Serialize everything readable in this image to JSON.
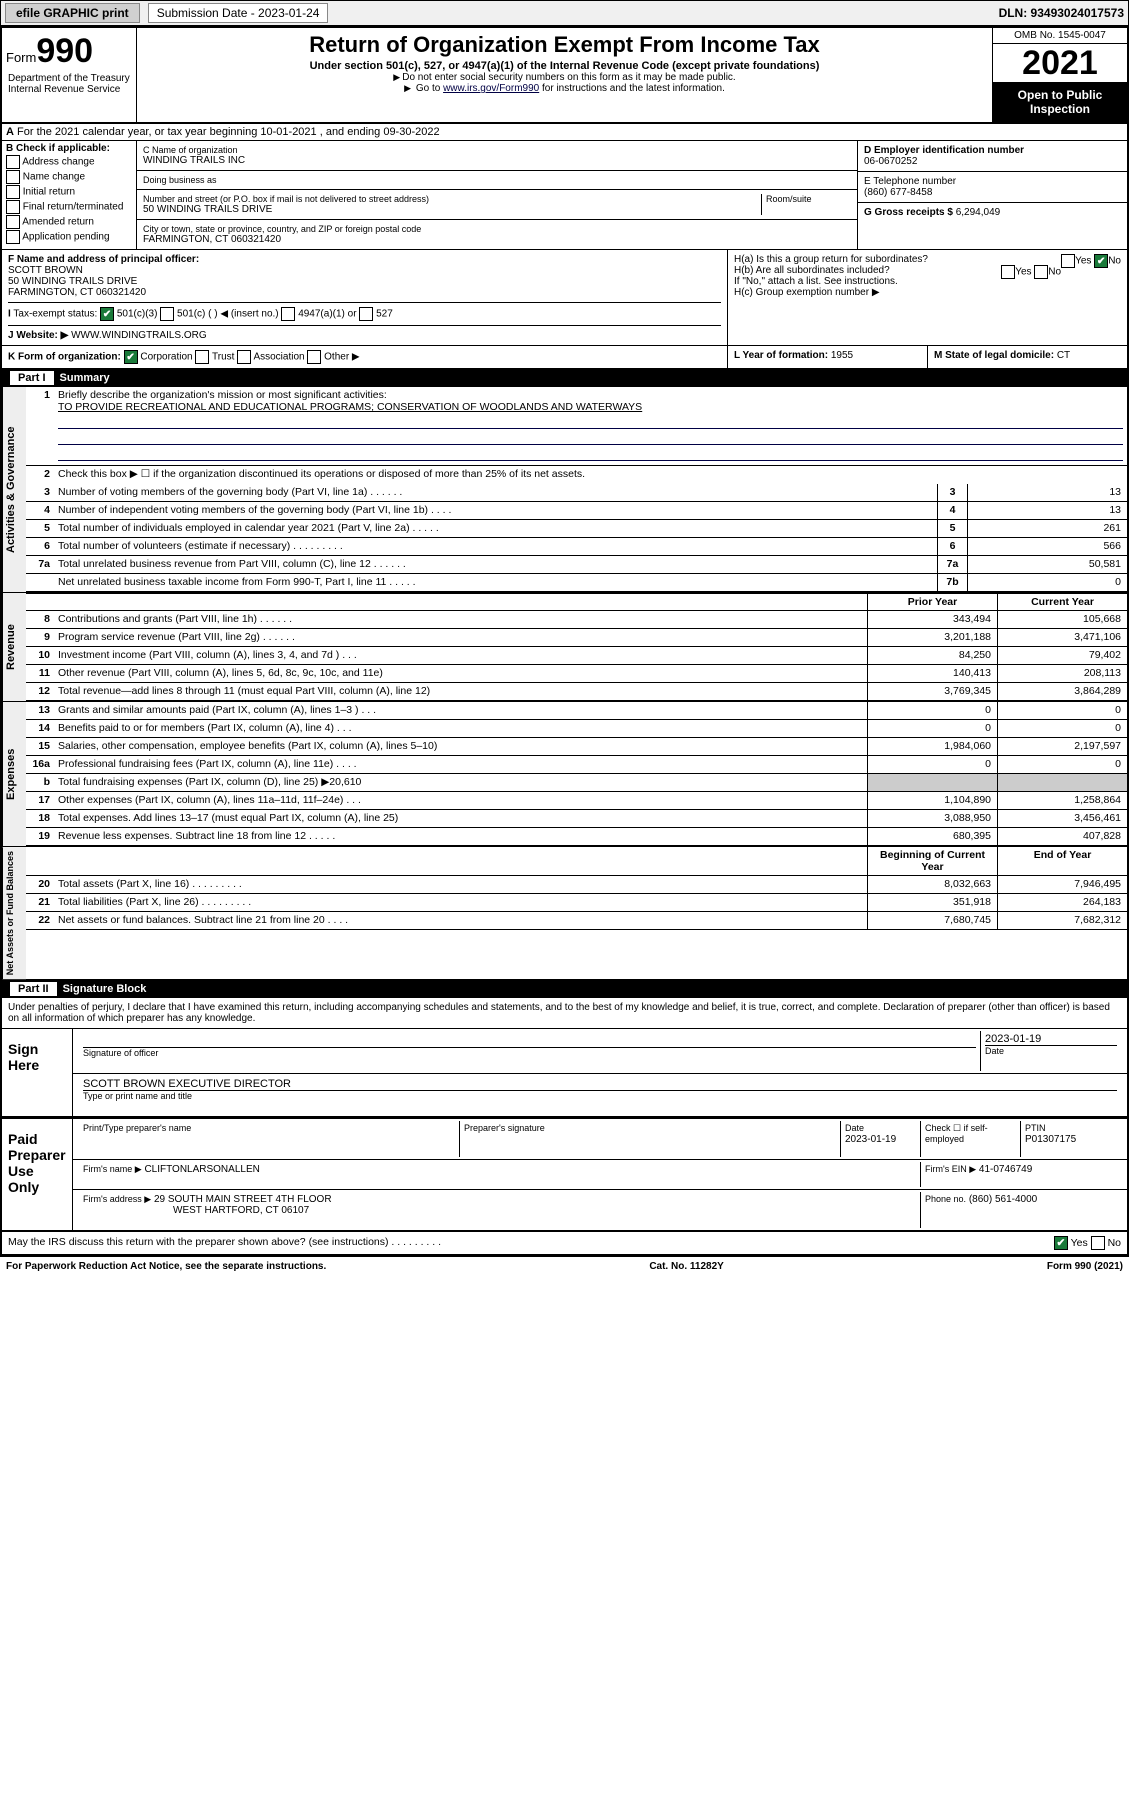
{
  "header": {
    "efile": "efile GRAPHIC print",
    "subdate_label": "Submission Date - 2023-01-24",
    "dln": "DLN: 93493024017573"
  },
  "top": {
    "form_prefix": "Form",
    "form_num": "990",
    "title": "Return of Organization Exempt From Income Tax",
    "subtitle": "Under section 501(c), 527, or 4947(a)(1) of the Internal Revenue Code (except private foundations)",
    "note1": "Do not enter social security numbers on this form as it may be made public.",
    "note2_pre": "Go to ",
    "note2_link": "www.irs.gov/Form990",
    "note2_post": " for instructions and the latest information.",
    "omb": "OMB No. 1545-0047",
    "year": "2021",
    "open_pub": "Open to Public Inspection",
    "dept": "Department of the Treasury\nInternal Revenue Service"
  },
  "lineA": "For the 2021 calendar year, or tax year beginning 10-01-2021   , and ending 09-30-2022",
  "colB": {
    "hdr": "B Check if applicable:",
    "items": [
      "Address change",
      "Name change",
      "Initial return",
      "Final return/terminated",
      "Amended return",
      "Application pending"
    ]
  },
  "colC": {
    "name_lbl": "C Name of organization",
    "name": "WINDING TRAILS INC",
    "dba_lbl": "Doing business as",
    "dba": "",
    "addr_lbl": "Number and street (or P.O. box if mail is not delivered to street address)",
    "room_lbl": "Room/suite",
    "addr": "50 WINDING TRAILS DRIVE",
    "city_lbl": "City or town, state or province, country, and ZIP or foreign postal code",
    "city": "FARMINGTON, CT  060321420"
  },
  "colDE": {
    "d_lbl": "D Employer identification number",
    "d_val": "06-0670252",
    "e_lbl": "E Telephone number",
    "e_val": "(860) 677-8458",
    "g_lbl": "G Gross receipts $",
    "g_val": "6,294,049"
  },
  "rowF": {
    "f_lbl": "F Name and address of principal officer:",
    "f_name": "SCOTT BROWN",
    "f_addr1": "50 WINDING TRAILS DRIVE",
    "f_addr2": "FARMINGTON, CT  060321420",
    "ha": "H(a)  Is this a group return for subordinates?",
    "hb": "H(b)  Are all subordinates included?",
    "hb_note": "If \"No,\" attach a list. See instructions.",
    "hc": "H(c)  Group exemption number ▶",
    "yes": "Yes",
    "no": "No"
  },
  "rowI": {
    "lbl": "Tax-exempt status:",
    "opts": [
      "501(c)(3)",
      "501(c) (   ) ◀ (insert no.)",
      "4947(a)(1) or",
      "527"
    ]
  },
  "rowJ": {
    "lbl": "Website: ▶",
    "val": "WWW.WINDINGTRAILS.ORG"
  },
  "rowK": {
    "lbl": "K Form of organization:",
    "opts": [
      "Corporation",
      "Trust",
      "Association",
      "Other ▶"
    ],
    "l_lbl": "L Year of formation:",
    "l_val": "1955",
    "m_lbl": "M State of legal domicile:",
    "m_val": "CT"
  },
  "part1": {
    "hdr": "Part I",
    "title": "Summary"
  },
  "gov": {
    "tab": "Activities & Governance",
    "l1": "Briefly describe the organization's mission or most significant activities:",
    "l1v": "TO PROVIDE RECREATIONAL AND EDUCATIONAL PROGRAMS; CONSERVATION OF WOODLANDS AND WATERWAYS",
    "l2": "Check this box ▶ ☐  if the organization discontinued its operations or disposed of more than 25% of its net assets.",
    "rows": [
      {
        "n": "3",
        "d": "Number of voting members of the governing body (Part VI, line 1a)   .     .     .     .     .     .",
        "b": "3",
        "v": "13"
      },
      {
        "n": "4",
        "d": "Number of independent voting members of the governing body (Part VI, line 1b)   .     .     .     .",
        "b": "4",
        "v": "13"
      },
      {
        "n": "5",
        "d": "Total number of individuals employed in calendar year 2021 (Part V, line 2a)   .     .     .     .     .",
        "b": "5",
        "v": "261"
      },
      {
        "n": "6",
        "d": "Total number of volunteers (estimate if necessary)   .     .     .     .     .     .     .     .     .",
        "b": "6",
        "v": "566"
      },
      {
        "n": "7a",
        "d": "Total unrelated business revenue from Part VIII, column (C), line 12   .     .     .     .     .     .",
        "b": "7a",
        "v": "50,581"
      },
      {
        "n": "",
        "d": "Net unrelated business taxable income from Form 990-T, Part I, line 11   .     .     .     .     .",
        "b": "7b",
        "v": "0"
      }
    ]
  },
  "colhdr": {
    "py": "Prior Year",
    "cy": "Current Year",
    "boc": "Beginning of Current Year",
    "eoy": "End of Year"
  },
  "rev": {
    "tab": "Revenue",
    "rows": [
      {
        "n": "8",
        "d": "Contributions and grants (Part VIII, line 1h)   .     .     .     .     .     .",
        "py": "343,494",
        "cy": "105,668"
      },
      {
        "n": "9",
        "d": "Program service revenue (Part VIII, line 2g)   .     .     .     .     .     .",
        "py": "3,201,188",
        "cy": "3,471,106"
      },
      {
        "n": "10",
        "d": "Investment income (Part VIII, column (A), lines 3, 4, and 7d )   .     .     .",
        "py": "84,250",
        "cy": "79,402"
      },
      {
        "n": "11",
        "d": "Other revenue (Part VIII, column (A), lines 5, 6d, 8c, 9c, 10c, and 11e)",
        "py": "140,413",
        "cy": "208,113"
      },
      {
        "n": "12",
        "d": "Total revenue—add lines 8 through 11 (must equal Part VIII, column (A), line 12)",
        "py": "3,769,345",
        "cy": "3,864,289"
      }
    ]
  },
  "exp": {
    "tab": "Expenses",
    "rows": [
      {
        "n": "13",
        "d": "Grants and similar amounts paid (Part IX, column (A), lines 1–3 )   .     .     .",
        "py": "0",
        "cy": "0"
      },
      {
        "n": "14",
        "d": "Benefits paid to or for members (Part IX, column (A), line 4)   .     .     .",
        "py": "0",
        "cy": "0"
      },
      {
        "n": "15",
        "d": "Salaries, other compensation, employee benefits (Part IX, column (A), lines 5–10)",
        "py": "1,984,060",
        "cy": "2,197,597"
      },
      {
        "n": "16a",
        "d": "Professional fundraising fees (Part IX, column (A), line 11e)   .     .     .     .",
        "py": "0",
        "cy": "0"
      },
      {
        "n": "b",
        "d": "Total fundraising expenses (Part IX, column (D), line 25) ▶20,610",
        "py": "",
        "cy": "",
        "shade": true
      },
      {
        "n": "17",
        "d": "Other expenses (Part IX, column (A), lines 11a–11d, 11f–24e)   .     .     .",
        "py": "1,104,890",
        "cy": "1,258,864"
      },
      {
        "n": "18",
        "d": "Total expenses. Add lines 13–17 (must equal Part IX, column (A), line 25)",
        "py": "3,088,950",
        "cy": "3,456,461"
      },
      {
        "n": "19",
        "d": "Revenue less expenses. Subtract line 18 from line 12   .     .     .     .     .",
        "py": "680,395",
        "cy": "407,828"
      }
    ]
  },
  "na": {
    "tab": "Net Assets or Fund Balances",
    "rows": [
      {
        "n": "20",
        "d": "Total assets (Part X, line 16)   .     .     .     .     .     .     .     .     .",
        "py": "8,032,663",
        "cy": "7,946,495"
      },
      {
        "n": "21",
        "d": "Total liabilities (Part X, line 26)   .     .     .     .     .     .     .     .     .",
        "py": "351,918",
        "cy": "264,183"
      },
      {
        "n": "22",
        "d": "Net assets or fund balances. Subtract line 21 from line 20   .     .     .     .",
        "py": "7,680,745",
        "cy": "7,682,312"
      }
    ]
  },
  "part2": {
    "hdr": "Part II",
    "title": "Signature Block"
  },
  "perjury": "Under penalties of perjury, I declare that I have examined this return, including accompanying schedules and statements, and to the best of my knowledge and belief, it is true, correct, and complete. Declaration of preparer (other than officer) is based on all information of which preparer has any knowledge.",
  "sign": {
    "here": "Sign Here",
    "sig_lbl": "Signature of officer",
    "date_lbl": "Date",
    "date_val": "2023-01-19",
    "name_lbl": "Type or print name and title",
    "name_val": "SCOTT BROWN  EXECUTIVE DIRECTOR"
  },
  "paid": {
    "here": "Paid Preparer Use Only",
    "pname_lbl": "Print/Type preparer's name",
    "psig_lbl": "Preparer's signature",
    "pdate_lbl": "Date",
    "pdate_val": "2023-01-19",
    "pcheck_lbl": "Check ☐ if self-employed",
    "ptin_lbl": "PTIN",
    "ptin_val": "P01307175",
    "firm_lbl": "Firm's name    ▶",
    "firm_val": "CLIFTONLARSONALLEN",
    "ein_lbl": "Firm's EIN ▶",
    "ein_val": "41-0746749",
    "faddr_lbl": "Firm's address ▶",
    "faddr1": "29 SOUTH MAIN STREET 4TH FLOOR",
    "faddr2": "WEST HARTFORD, CT  06107",
    "phone_lbl": "Phone no.",
    "phone_val": "(860) 561-4000"
  },
  "bottom": {
    "discuss": "May the IRS discuss this return with the preparer shown above? (see instructions)   .     .     .     .     .     .     .     .     .",
    "yes": "Yes",
    "no": "No",
    "pra": "For Paperwork Reduction Act Notice, see the separate instructions.",
    "cat": "Cat. No. 11282Y",
    "form": "Form 990 (2021)"
  }
}
